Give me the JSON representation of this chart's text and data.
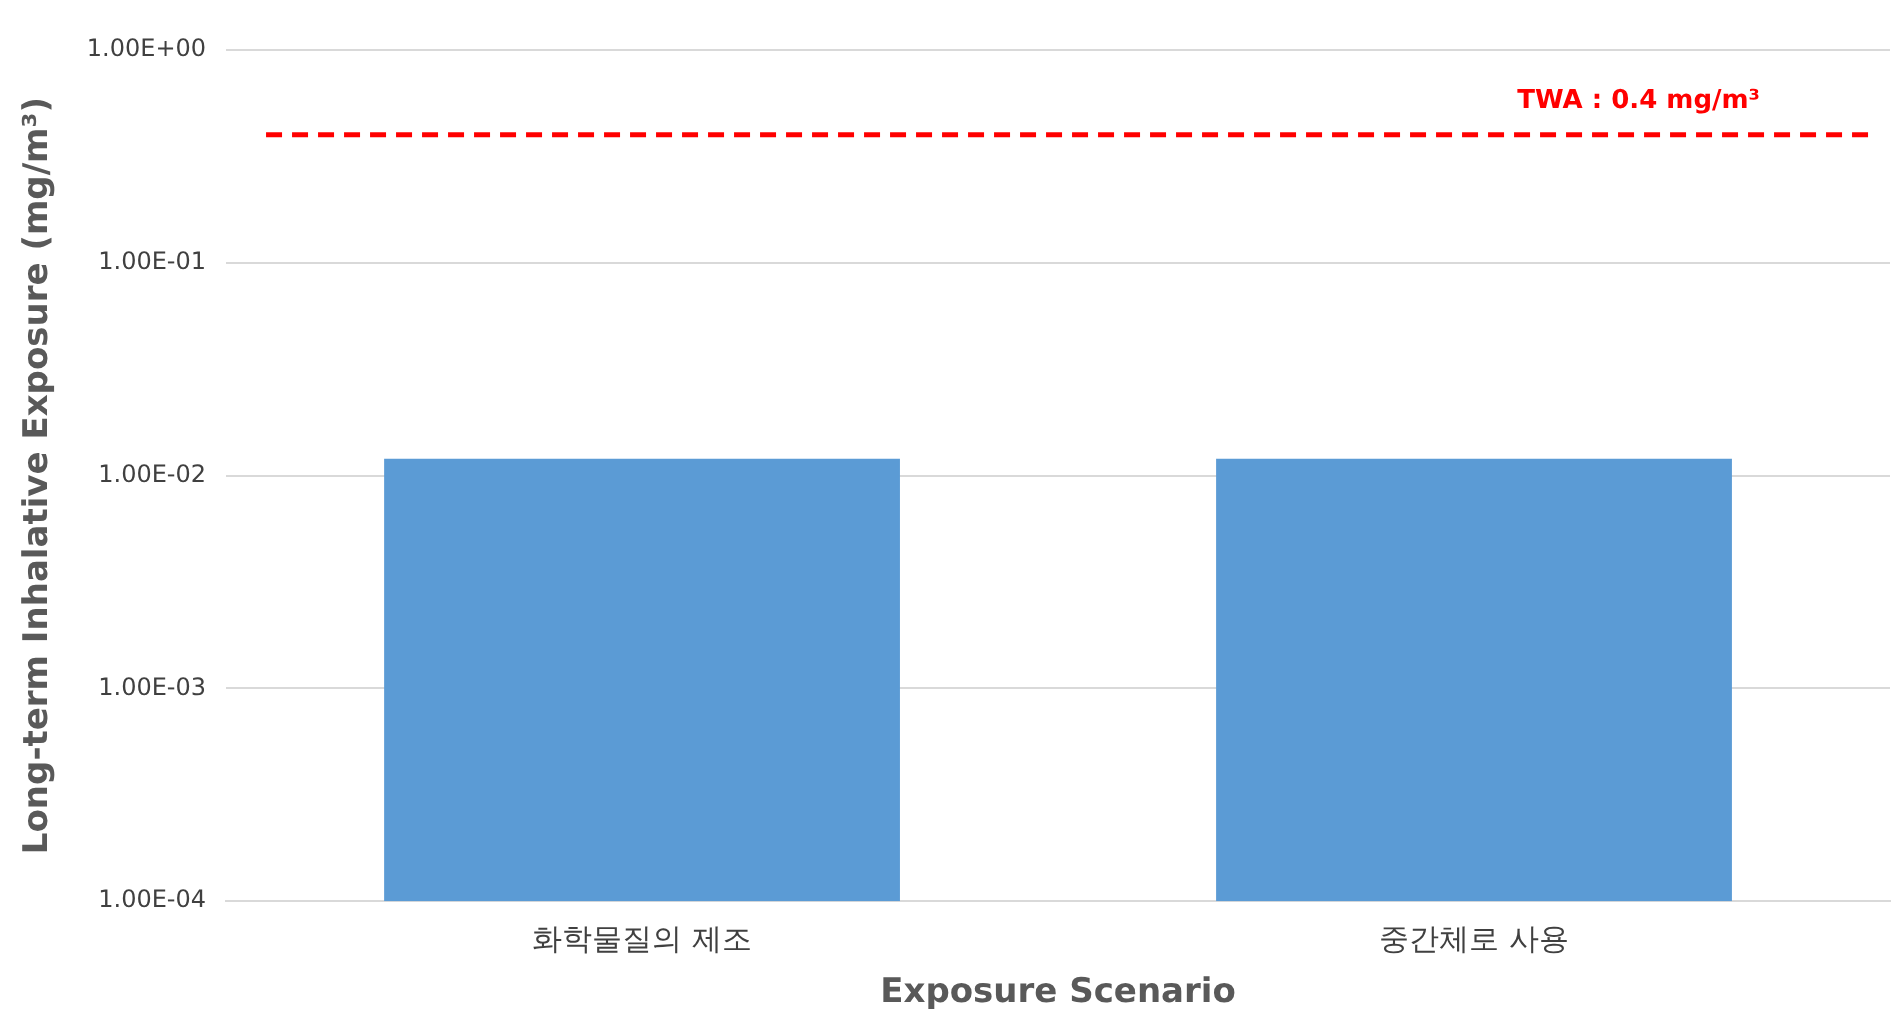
{
  "chart_data": {
    "type": "bar",
    "xlabel": "Exposure Scenario",
    "ylabel": "Long-term Inhalative Exposure (mg/m³)",
    "categories": [
      "화학물질의 제조",
      "중간체로 사용"
    ],
    "values": [
      0.012,
      0.012
    ],
    "color": "#5b9bd5",
    "log": "y",
    "ylim": [
      0.0001,
      1
    ],
    "yticks": [
      {
        "value": 0.0001,
        "label": "1.00E-04"
      },
      {
        "value": 0.001,
        "label": "1.00E-03"
      },
      {
        "value": 0.01,
        "label": "1.00E-02"
      },
      {
        "value": 0.1,
        "label": "1.00E-01"
      },
      {
        "value": 1,
        "label": "1.00E+00"
      }
    ],
    "grid": "y",
    "legend": false,
    "ref_lines": [
      {
        "axis": "y",
        "value": 0.4,
        "label": "TWA : 0.4 mg/m³",
        "color": "#ff0000",
        "line_style": "dashed"
      }
    ]
  }
}
